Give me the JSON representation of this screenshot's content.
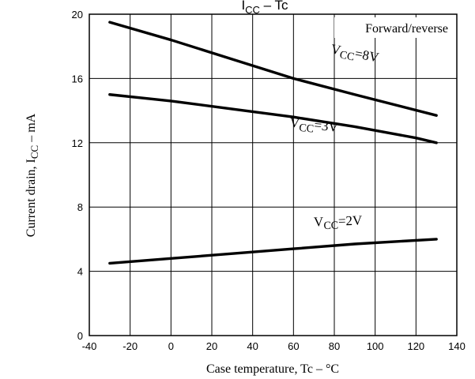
{
  "chart_data": {
    "type": "line",
    "title_main": "I",
    "title_sub": "CC",
    "title_rest": " – Tc",
    "xlabel": "Case temperature, Tc – °C",
    "ylabel_main": "Current drain, I",
    "ylabel_sub": "CC",
    "ylabel_rest": " – mA",
    "xlim": [
      -40,
      140
    ],
    "ylim": [
      0,
      20
    ],
    "x_ticks": [
      "-40",
      "-20",
      "0",
      "20",
      "40",
      "60",
      "80",
      "100",
      "120",
      "140"
    ],
    "y_ticks": [
      "0",
      "4",
      "8",
      "12",
      "16",
      "20"
    ],
    "grid": true,
    "annotation": "Forward/reverse",
    "series": [
      {
        "label_main": "V",
        "label_sub": "CC",
        "label_rest": "=8V",
        "x": [
          -30,
          0,
          30,
          60,
          90,
          130
        ],
        "y": [
          19.5,
          18.4,
          17.2,
          16.0,
          15.0,
          13.7
        ]
      },
      {
        "label_main": "V",
        "label_sub": "CC",
        "label_rest": "=3V",
        "x": [
          -30,
          0,
          30,
          60,
          90,
          120,
          130
        ],
        "y": [
          15.0,
          14.6,
          14.1,
          13.6,
          13.0,
          12.3,
          12.0
        ]
      },
      {
        "label_main": "V",
        "label_sub": "CC",
        "label_rest": "=2V",
        "x": [
          -30,
          0,
          30,
          60,
          90,
          130
        ],
        "y": [
          4.5,
          4.8,
          5.1,
          5.4,
          5.7,
          6.0
        ]
      }
    ]
  }
}
